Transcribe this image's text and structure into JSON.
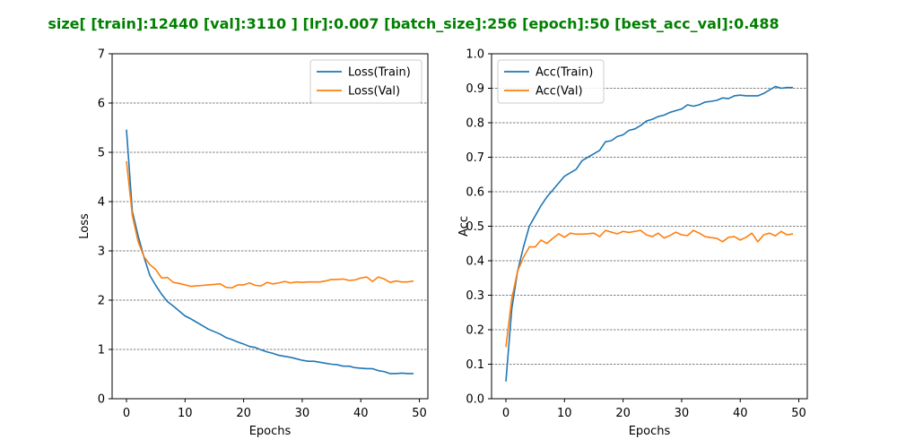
{
  "suptitle": "size[ [train]:12440  [val]:3110 ]  [lr]:0.007  [batch_size]:256  [epoch]:50  [best_acc_val]:0.488",
  "suptitle_color": "#008000",
  "chart_data": [
    {
      "type": "line",
      "title": "",
      "xlabel": "Epochs",
      "ylabel": "Loss",
      "xlim": [
        -2.45,
        51.45
      ],
      "ylim": [
        0,
        7
      ],
      "xticks": [
        0,
        10,
        20,
        30,
        40,
        50
      ],
      "yticks": [
        0,
        1,
        2,
        3,
        4,
        5,
        6,
        7
      ],
      "grid": "horizontal dashed",
      "legend_position": "top-right",
      "x": [
        0,
        1,
        2,
        3,
        4,
        5,
        6,
        7,
        8,
        9,
        10,
        11,
        12,
        13,
        14,
        15,
        16,
        17,
        18,
        19,
        20,
        21,
        22,
        23,
        24,
        25,
        26,
        27,
        28,
        29,
        30,
        31,
        32,
        33,
        34,
        35,
        36,
        37,
        38,
        39,
        40,
        41,
        42,
        43,
        44,
        45,
        46,
        47,
        48,
        49
      ],
      "series": [
        {
          "name": "Loss(Train)",
          "color": "#1f77b4",
          "values": [
            5.46,
            3.8,
            3.3,
            2.87,
            2.5,
            2.3,
            2.12,
            1.97,
            1.88,
            1.78,
            1.68,
            1.62,
            1.55,
            1.48,
            1.41,
            1.36,
            1.31,
            1.24,
            1.2,
            1.15,
            1.11,
            1.06,
            1.04,
            0.99,
            0.95,
            0.92,
            0.88,
            0.86,
            0.84,
            0.81,
            0.78,
            0.76,
            0.76,
            0.74,
            0.72,
            0.7,
            0.69,
            0.66,
            0.66,
            0.63,
            0.62,
            0.61,
            0.61,
            0.57,
            0.55,
            0.51,
            0.51,
            0.52,
            0.51,
            0.51
          ]
        },
        {
          "name": "Loss(Val)",
          "color": "#ff7f0e",
          "values": [
            4.82,
            3.72,
            3.18,
            2.88,
            2.72,
            2.62,
            2.45,
            2.46,
            2.36,
            2.34,
            2.31,
            2.28,
            2.29,
            2.3,
            2.31,
            2.32,
            2.33,
            2.26,
            2.25,
            2.31,
            2.31,
            2.35,
            2.3,
            2.29,
            2.36,
            2.33,
            2.35,
            2.38,
            2.35,
            2.37,
            2.36,
            2.37,
            2.37,
            2.37,
            2.39,
            2.42,
            2.42,
            2.43,
            2.4,
            2.41,
            2.45,
            2.47,
            2.38,
            2.47,
            2.43,
            2.36,
            2.39,
            2.37,
            2.37,
            2.39
          ]
        }
      ]
    },
    {
      "type": "line",
      "title": "",
      "xlabel": "Epochs",
      "ylabel": "Acc",
      "xlim": [
        -2.45,
        51.45
      ],
      "ylim": [
        0,
        1.0
      ],
      "xticks": [
        0,
        10,
        20,
        30,
        40,
        50
      ],
      "yticks": [
        0.0,
        0.1,
        0.2,
        0.3,
        0.4,
        0.5,
        0.6,
        0.7,
        0.8,
        0.9,
        1.0
      ],
      "grid": "horizontal dashed",
      "legend_position": "top-left",
      "x": [
        0,
        1,
        2,
        3,
        4,
        5,
        6,
        7,
        8,
        9,
        10,
        11,
        12,
        13,
        14,
        15,
        16,
        17,
        18,
        19,
        20,
        21,
        22,
        23,
        24,
        25,
        26,
        27,
        28,
        29,
        30,
        31,
        32,
        33,
        34,
        35,
        36,
        37,
        38,
        39,
        40,
        41,
        42,
        43,
        44,
        45,
        46,
        47,
        48,
        49
      ],
      "series": [
        {
          "name": "Acc(Train)",
          "color": "#1f77b4",
          "values": [
            0.05,
            0.26,
            0.37,
            0.44,
            0.5,
            0.53,
            0.56,
            0.585,
            0.605,
            0.625,
            0.645,
            0.655,
            0.665,
            0.69,
            0.7,
            0.71,
            0.72,
            0.745,
            0.748,
            0.76,
            0.765,
            0.778,
            0.782,
            0.792,
            0.805,
            0.81,
            0.818,
            0.822,
            0.83,
            0.835,
            0.84,
            0.852,
            0.848,
            0.852,
            0.86,
            0.862,
            0.865,
            0.872,
            0.87,
            0.878,
            0.88,
            0.878,
            0.878,
            0.878,
            0.885,
            0.895,
            0.905,
            0.9,
            0.902,
            0.902
          ]
        },
        {
          "name": "Acc(Val)",
          "color": "#ff7f0e",
          "values": [
            0.15,
            0.29,
            0.37,
            0.41,
            0.44,
            0.44,
            0.46,
            0.45,
            0.465,
            0.478,
            0.468,
            0.48,
            0.477,
            0.477,
            0.478,
            0.48,
            0.47,
            0.488,
            0.483,
            0.478,
            0.485,
            0.482,
            0.485,
            0.488,
            0.475,
            0.47,
            0.48,
            0.466,
            0.473,
            0.483,
            0.475,
            0.473,
            0.488,
            0.48,
            0.47,
            0.467,
            0.465,
            0.455,
            0.468,
            0.47,
            0.46,
            0.468,
            0.48,
            0.455,
            0.475,
            0.48,
            0.472,
            0.485,
            0.475,
            0.478
          ]
        }
      ]
    }
  ]
}
